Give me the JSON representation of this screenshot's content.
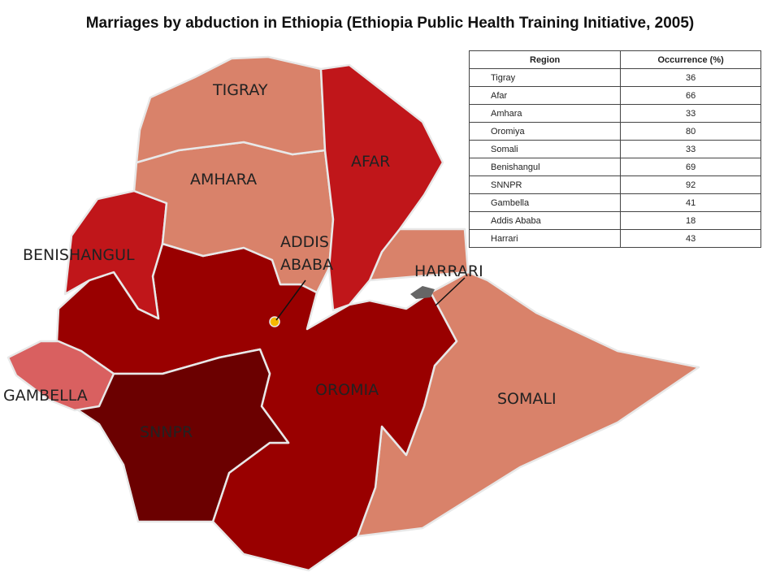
{
  "title": "Marriages by abduction in Ethiopia (Ethiopia Public Health Training Initiative, 2005)",
  "table": {
    "header": [
      "Region",
      "Occurrence (%)"
    ],
    "rows": [
      [
        "Tigray",
        36
      ],
      [
        "Afar",
        66
      ],
      [
        "Amhara",
        33
      ],
      [
        "Oromiya",
        80
      ],
      [
        "Somali",
        33
      ],
      [
        "Benishangul",
        69
      ],
      [
        "SNNPR",
        92
      ],
      [
        "Gambella",
        41
      ],
      [
        "Addis Ababa",
        18
      ],
      [
        "Harrari",
        43
      ]
    ]
  },
  "map": {
    "labels": {
      "tigray": "TIGRAY",
      "afar": "AFAR",
      "amhara": "AMHARA",
      "benishangul": "BENISHANGUL",
      "addis_ababa": [
        "ADDIS",
        "ABABA"
      ],
      "harrari": "HARRARI",
      "gambella": "GAMBELLA",
      "oromia": "OROMIA",
      "snnpr": "SNNPR",
      "somali": "SOMALI"
    }
  }
}
